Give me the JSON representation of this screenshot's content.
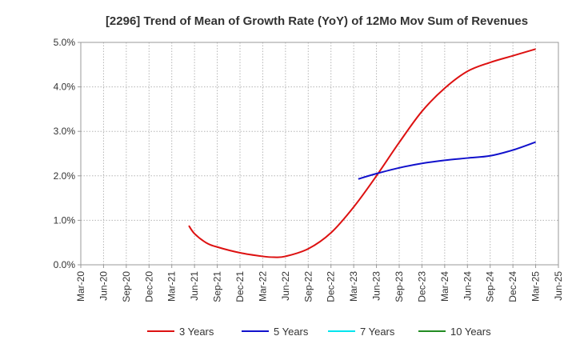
{
  "chart_data": {
    "type": "line",
    "title": "[2296]  Trend of Mean of Growth Rate (YoY) of 12Mo Mov Sum of Revenues",
    "xlabel": "",
    "ylabel": "",
    "x_ticks": [
      "Mar-20",
      "Jun-20",
      "Sep-20",
      "Dec-20",
      "Mar-21",
      "Jun-21",
      "Sep-21",
      "Dec-21",
      "Mar-22",
      "Jun-22",
      "Sep-22",
      "Dec-22",
      "Mar-23",
      "Jun-23",
      "Sep-23",
      "Dec-23",
      "Mar-24",
      "Jun-24",
      "Sep-24",
      "Dec-24",
      "Mar-25",
      "Jun-25"
    ],
    "y_ticks": [
      "0.0%",
      "1.0%",
      "2.0%",
      "3.0%",
      "4.0%",
      "5.0%"
    ],
    "ylim": [
      0,
      5
    ],
    "grid": true,
    "legend_position": "bottom",
    "series": [
      {
        "name": "3 Years",
        "color": "#dd1111",
        "x": [
          4.75,
          5,
          5.5,
          6,
          7,
          8,
          8.5,
          9,
          10,
          11,
          12,
          13,
          14,
          15,
          16,
          17,
          18,
          19,
          20
        ],
        "values": [
          0.88,
          0.7,
          0.5,
          0.4,
          0.27,
          0.19,
          0.17,
          0.19,
          0.36,
          0.72,
          1.3,
          2.0,
          2.75,
          3.45,
          3.97,
          4.35,
          4.55,
          4.7,
          4.85
        ]
      },
      {
        "name": "5 Years",
        "color": "#1111cc",
        "x": [
          12.2,
          13,
          14,
          15,
          16,
          17,
          18,
          19,
          20
        ],
        "values": [
          1.93,
          2.05,
          2.18,
          2.28,
          2.35,
          2.4,
          2.45,
          2.58,
          2.76
        ]
      },
      {
        "name": "7 Years",
        "color": "#00e5ee",
        "x": [],
        "values": []
      },
      {
        "name": "10 Years",
        "color": "#228b22",
        "x": [],
        "values": []
      }
    ]
  }
}
